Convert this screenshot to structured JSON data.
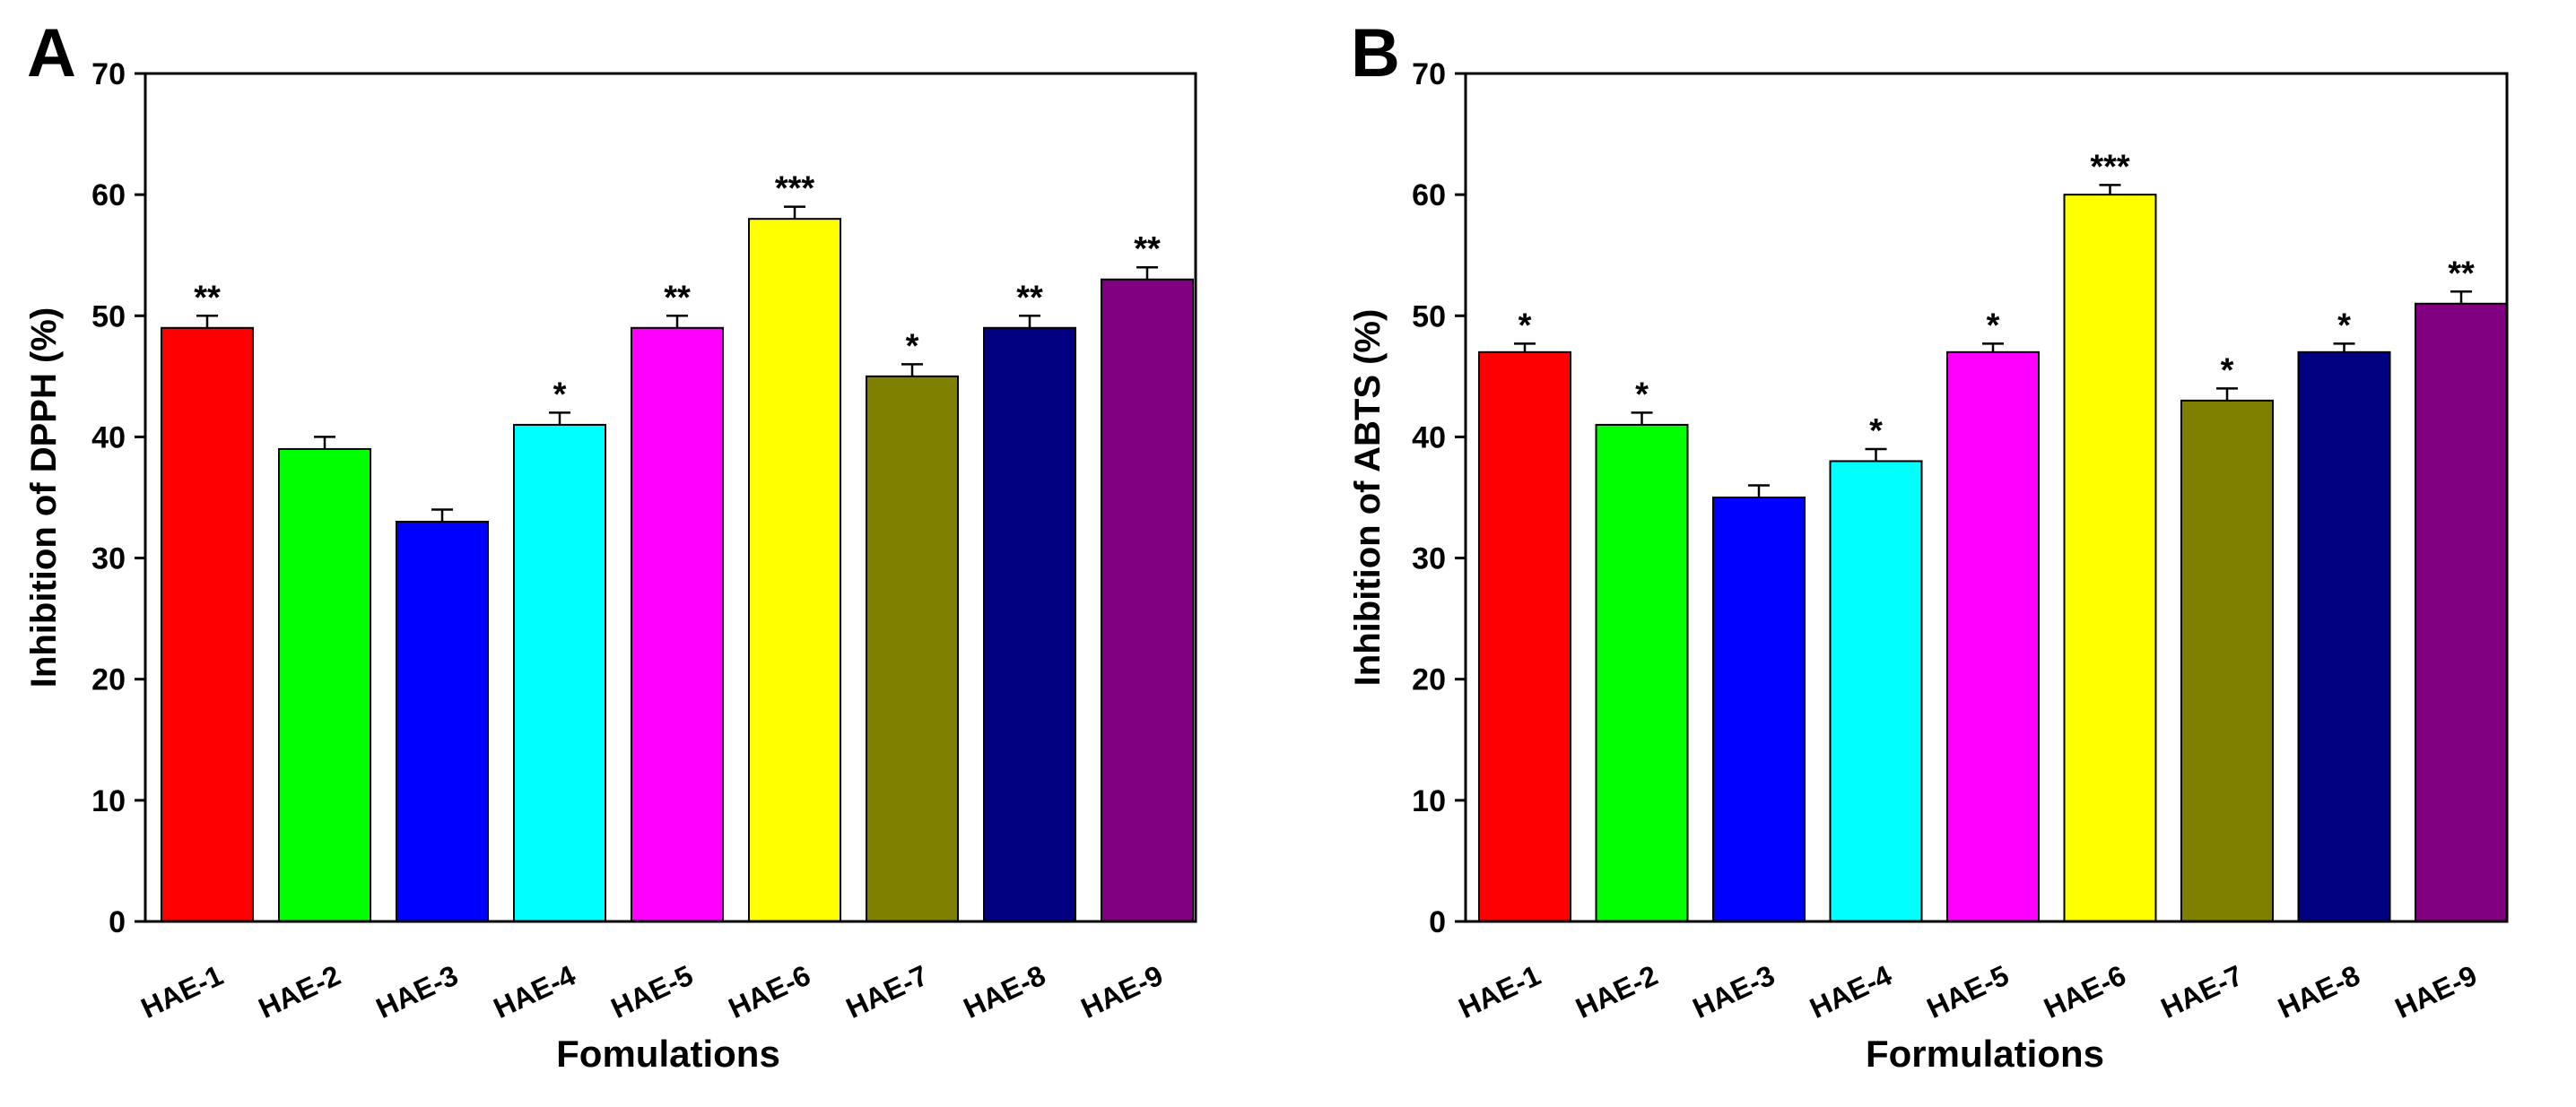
{
  "panels": [
    {
      "label": "A",
      "chart_data": {
        "type": "bar",
        "title": "",
        "xlabel": "Fomulations",
        "ylabel": "Inhibition of DPPH (%)",
        "categories": [
          "HAE-1",
          "HAE-2",
          "HAE-3",
          "HAE-4",
          "HAE-5",
          "HAE-6",
          "HAE-7",
          "HAE-8",
          "HAE-9"
        ],
        "values": [
          49,
          39,
          33,
          41,
          49,
          58,
          45,
          49,
          53
        ],
        "errors": [
          1,
          1,
          1,
          1,
          1,
          1,
          1,
          1,
          1
        ],
        "significance": [
          "**",
          "",
          "",
          "*",
          "**",
          "***",
          "*",
          "**",
          "**"
        ],
        "colors": [
          "#ff0000",
          "#00ff00",
          "#0000ff",
          "#00ffff",
          "#ff00ff",
          "#ffff00",
          "#808000",
          "#000080",
          "#800080"
        ],
        "ylim": [
          0,
          70
        ],
        "yticks": [
          0,
          10,
          20,
          30,
          40,
          50,
          60,
          70
        ],
        "grid": false,
        "legend": "none"
      }
    },
    {
      "label": "B",
      "chart_data": {
        "type": "bar",
        "title": "",
        "xlabel": "Formulations",
        "ylabel": "Inhibition of ABTS (%)",
        "categories": [
          "HAE-1",
          "HAE-2",
          "HAE-3",
          "HAE-4",
          "HAE-5",
          "HAE-6",
          "HAE-7",
          "HAE-8",
          "HAE-9"
        ],
        "values": [
          47,
          41,
          35,
          38,
          47,
          60,
          43,
          47,
          51
        ],
        "errors": [
          0.7,
          1,
          1,
          1,
          0.7,
          0.8,
          1,
          0.7,
          1
        ],
        "significance": [
          "*",
          "*",
          "",
          "*",
          "*",
          "***",
          "*",
          "*",
          "**"
        ],
        "colors": [
          "#ff0000",
          "#00ff00",
          "#0000ff",
          "#00ffff",
          "#ff00ff",
          "#ffff00",
          "#808000",
          "#000080",
          "#800080"
        ],
        "ylim": [
          0,
          70
        ],
        "yticks": [
          0,
          10,
          20,
          30,
          40,
          50,
          60,
          70
        ],
        "grid": false,
        "legend": "none"
      }
    }
  ]
}
